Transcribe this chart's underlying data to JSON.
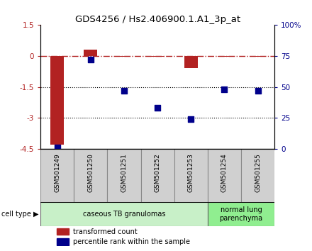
{
  "title": "GDS4256 / Hs2.406900.1.A1_3p_at",
  "samples": [
    "GSM501249",
    "GSM501250",
    "GSM501251",
    "GSM501252",
    "GSM501253",
    "GSM501254",
    "GSM501255"
  ],
  "transformed_count": [
    -4.3,
    0.3,
    -0.05,
    -0.05,
    -0.6,
    -0.05,
    -0.05
  ],
  "percentile_rank": [
    1,
    72,
    47,
    33,
    24,
    48,
    47
  ],
  "left_ylim": [
    -4.5,
    1.5
  ],
  "right_ylim": [
    0,
    100
  ],
  "left_yticks": [
    -4.5,
    -3,
    -1.5,
    0,
    1.5
  ],
  "left_yticklabels": [
    "-4.5",
    "-3",
    "-1.5",
    "0",
    "1.5"
  ],
  "right_yticks": [
    0,
    25,
    50,
    75,
    100
  ],
  "right_yticklabels": [
    "0",
    "25",
    "50",
    "75",
    "100%"
  ],
  "bar_color": "#b22222",
  "dot_color": "#00008b",
  "dotted_lines": [
    -1.5,
    -3
  ],
  "bar_width": 0.4,
  "dot_size": 35,
  "legend_red": "transformed count",
  "legend_blue": "percentile rank within the sample",
  "cell_type_text": "cell type",
  "cell_groups": [
    {
      "label": "caseous TB granulomas",
      "start": 0,
      "end": 4,
      "color": "#c8f0c8"
    },
    {
      "label": "normal lung\nparenchyma",
      "start": 5,
      "end": 6,
      "color": "#90ee90"
    }
  ],
  "label_box_color": "#d0d0d0",
  "label_box_edge": "#888888"
}
